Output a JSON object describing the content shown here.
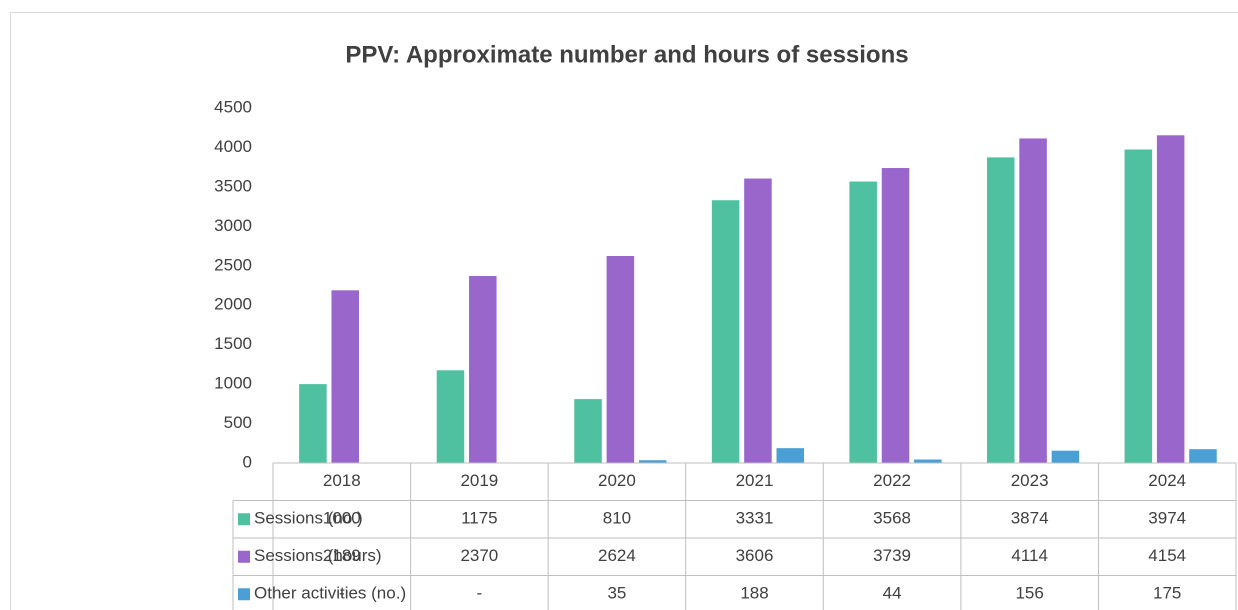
{
  "chart_data": {
    "type": "bar",
    "title": "PPV: Approximate number and hours of sessions",
    "categories": [
      "2018",
      "2019",
      "2020",
      "2021",
      "2022",
      "2023",
      "2024"
    ],
    "series": [
      {
        "name": "Sessions (no.)",
        "color": "#4fc1a0",
        "values": [
          1000,
          1175,
          810,
          3331,
          3568,
          3874,
          3974
        ]
      },
      {
        "name": "Sessions (hours)",
        "color": "#9966cc",
        "values": [
          2189,
          2370,
          2624,
          3606,
          3739,
          4114,
          4154
        ]
      },
      {
        "name": "Other activities (no.)",
        "color": "#4a9fd4",
        "values": [
          null,
          null,
          35,
          188,
          44,
          156,
          175
        ],
        "value_labels": [
          "-",
          "-",
          "35",
          "188",
          "44",
          "156",
          "175"
        ]
      }
    ],
    "ylim": [
      0,
      4500
    ],
    "yticks": [
      0,
      500,
      1000,
      1500,
      2000,
      2500,
      3000,
      3500,
      4000,
      4500
    ],
    "grid": false,
    "legend": "table"
  }
}
